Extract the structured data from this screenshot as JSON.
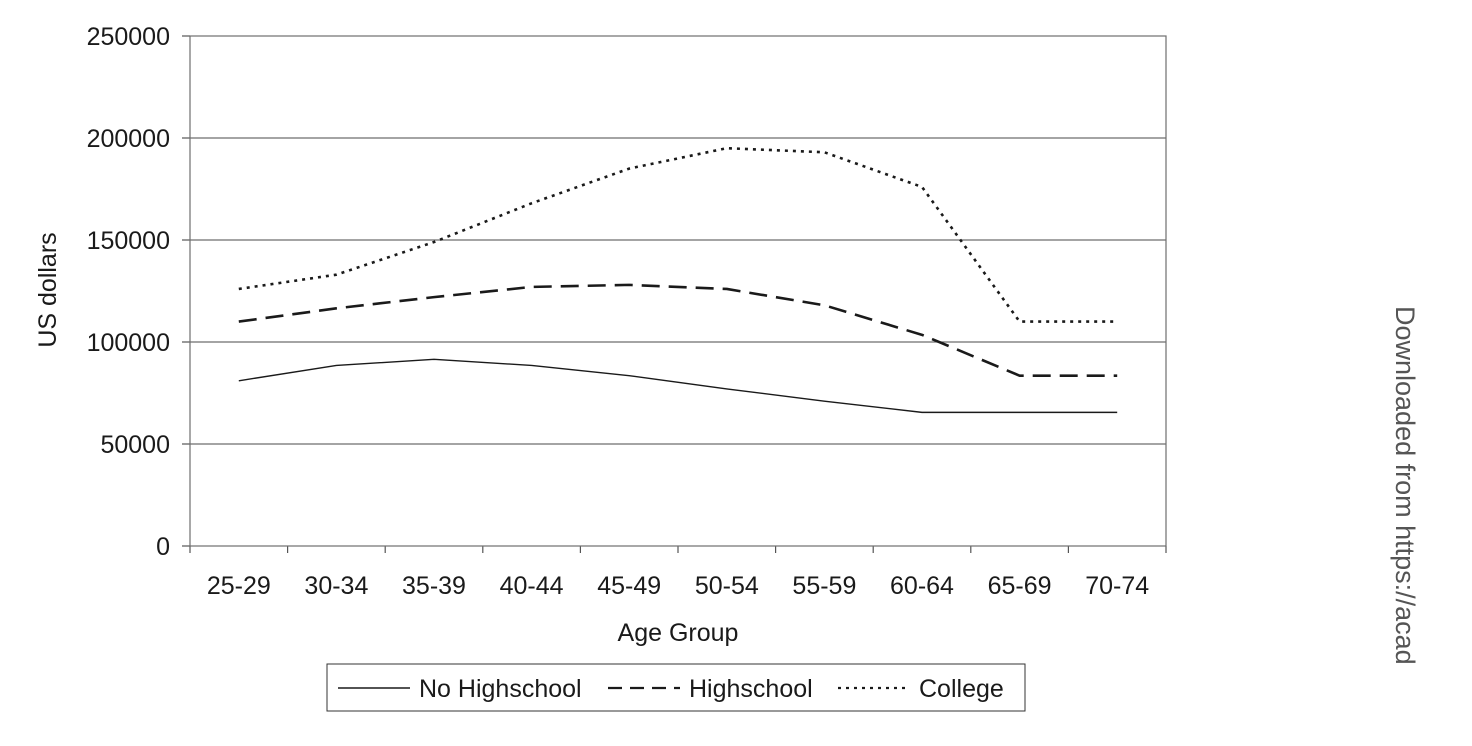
{
  "chart_data": {
    "type": "line",
    "categories": [
      "25-29",
      "30-34",
      "35-39",
      "40-44",
      "45-49",
      "50-54",
      "55-59",
      "60-64",
      "65-69",
      "70-74"
    ],
    "series": [
      {
        "name": "No Highschool",
        "style": "solid",
        "values": [
          81000,
          88500,
          91500,
          88500,
          83500,
          77000,
          71000,
          65500,
          65500,
          65500
        ]
      },
      {
        "name": "Highschool",
        "style": "dashed",
        "values": [
          110000,
          116500,
          122000,
          127000,
          128000,
          126000,
          118000,
          103500,
          83500,
          83500
        ]
      },
      {
        "name": "College",
        "style": "dotted",
        "values": [
          126000,
          133000,
          149000,
          168000,
          185000,
          195000,
          193000,
          176000,
          110000,
          110000
        ]
      }
    ],
    "title": "",
    "xlabel": "Age Group",
    "ylabel": "US dollars",
    "ylim": [
      0,
      250000
    ],
    "yticks": [
      0,
      50000,
      100000,
      150000,
      200000,
      250000
    ],
    "grid": "horizontal",
    "legend": "bottom",
    "colors": {
      "line": "#1a1a1a",
      "grid": "#6e6e6e",
      "axis": "#555555"
    }
  },
  "watermark": "Downloaded from https://acad"
}
